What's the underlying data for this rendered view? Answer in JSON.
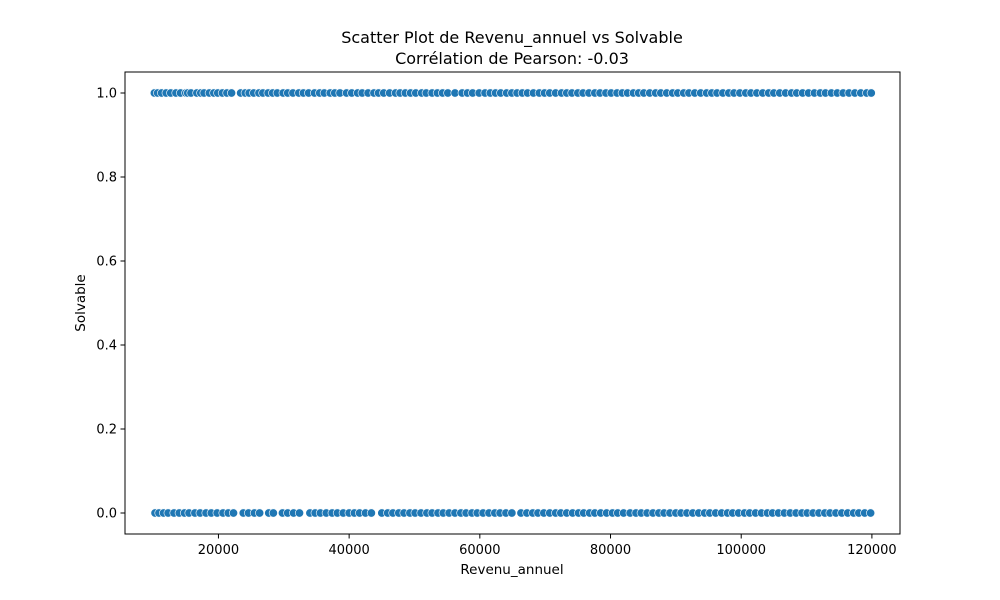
{
  "chart_data": {
    "type": "scatter",
    "title": "Scatter Plot de Revenu_annuel vs Solvable",
    "subtitle": "Corrélation de Pearson: -0.03",
    "xlabel": "Revenu_annuel",
    "ylabel": "Solvable",
    "xlim": [
      5700,
      124300
    ],
    "ylim": [
      -0.05,
      1.05
    ],
    "xticks": [
      20000,
      40000,
      60000,
      80000,
      100000,
      120000
    ],
    "yticks": [
      0.0,
      0.2,
      0.4,
      0.6,
      0.8,
      1.0
    ],
    "xtick_labels": [
      "20000",
      "40000",
      "60000",
      "80000",
      "100000",
      "120000"
    ],
    "ytick_labels": [
      "0.0",
      "0.2",
      "0.4",
      "0.6",
      "0.8",
      "1.0"
    ],
    "grid": false,
    "marker_color": "#1f77b4",
    "marker_edge_color": "#ffffff",
    "series": [
      {
        "y": 1.0,
        "x": [
          10200,
          10700,
          11300,
          12000,
          12700,
          13500,
          14200,
          15000,
          15300,
          15800,
          16700,
          17300,
          17800,
          18600,
          19300,
          19900,
          20600,
          21300,
          22000,
          23400,
          24100,
          24700,
          25400,
          26200,
          26800,
          27600,
          28300,
          29000,
          29900,
          30600,
          31400,
          32300,
          33000,
          33800,
          34700,
          35500,
          36200,
          37100,
          37800,
          38600,
          39600,
          40400,
          41300,
          42000,
          42900,
          43800,
          44500,
          45300,
          46200,
          47100,
          47800,
          48600,
          49400,
          50200,
          51100,
          51800,
          52700,
          53500,
          54300,
          55100,
          56200,
          57300,
          58100,
          58900,
          59900,
          60800,
          61600,
          62400,
          63200,
          64100,
          64900,
          65700,
          66500,
          67300,
          68200,
          69100,
          69900,
          70700,
          71600,
          72500,
          73300,
          74100,
          75000,
          75800,
          76700,
          77600,
          78400,
          79300,
          80100,
          81000,
          81800,
          82600,
          83500,
          84300,
          85100,
          86000,
          86900,
          87700,
          88600,
          89500,
          90300,
          91200,
          92000,
          92900,
          93800,
          94700,
          95500,
          96300,
          97200,
          98100,
          98900,
          99800,
          100700,
          101500,
          102400,
          103300,
          104200,
          105000,
          105900,
          106800,
          107700,
          108500,
          109400,
          110300,
          111200,
          112100,
          112900,
          113800,
          114700,
          115600,
          116500,
          117400,
          118300,
          119200,
          119900
        ]
      },
      {
        "y": 0.0,
        "x": [
          10300,
          10900,
          11600,
          12300,
          13200,
          14000,
          14800,
          15500,
          16400,
          17200,
          18100,
          18900,
          19800,
          20700,
          21500,
          22300,
          23800,
          24600,
          25500,
          26300,
          27700,
          28400,
          29800,
          30600,
          31500,
          32400,
          34000,
          34800,
          35600,
          36500,
          37400,
          38200,
          39100,
          40000,
          40800,
          41600,
          42500,
          43400,
          45000,
          45900,
          46700,
          47600,
          48400,
          49300,
          50100,
          51000,
          51900,
          52700,
          53600,
          54400,
          55300,
          56200,
          57100,
          57900,
          58800,
          59600,
          60500,
          61400,
          62300,
          63100,
          64000,
          64900,
          66300,
          67200,
          68100,
          68900,
          69800,
          70700,
          71600,
          72400,
          73300,
          74200,
          75100,
          75900,
          76800,
          77600,
          78500,
          79400,
          80300,
          81100,
          82000,
          83000,
          83900,
          84700,
          85600,
          86500,
          87400,
          88200,
          89100,
          90000,
          90800,
          91700,
          92600,
          93500,
          94400,
          95200,
          96100,
          97000,
          97900,
          98700,
          99600,
          100500,
          101300,
          102200,
          103100,
          104000,
          104800,
          105700,
          106600,
          107500,
          108400,
          109300,
          110100,
          111000,
          111900,
          112800,
          113600,
          114500,
          115400,
          116300,
          117200,
          118000,
          118900,
          119800
        ]
      }
    ]
  }
}
